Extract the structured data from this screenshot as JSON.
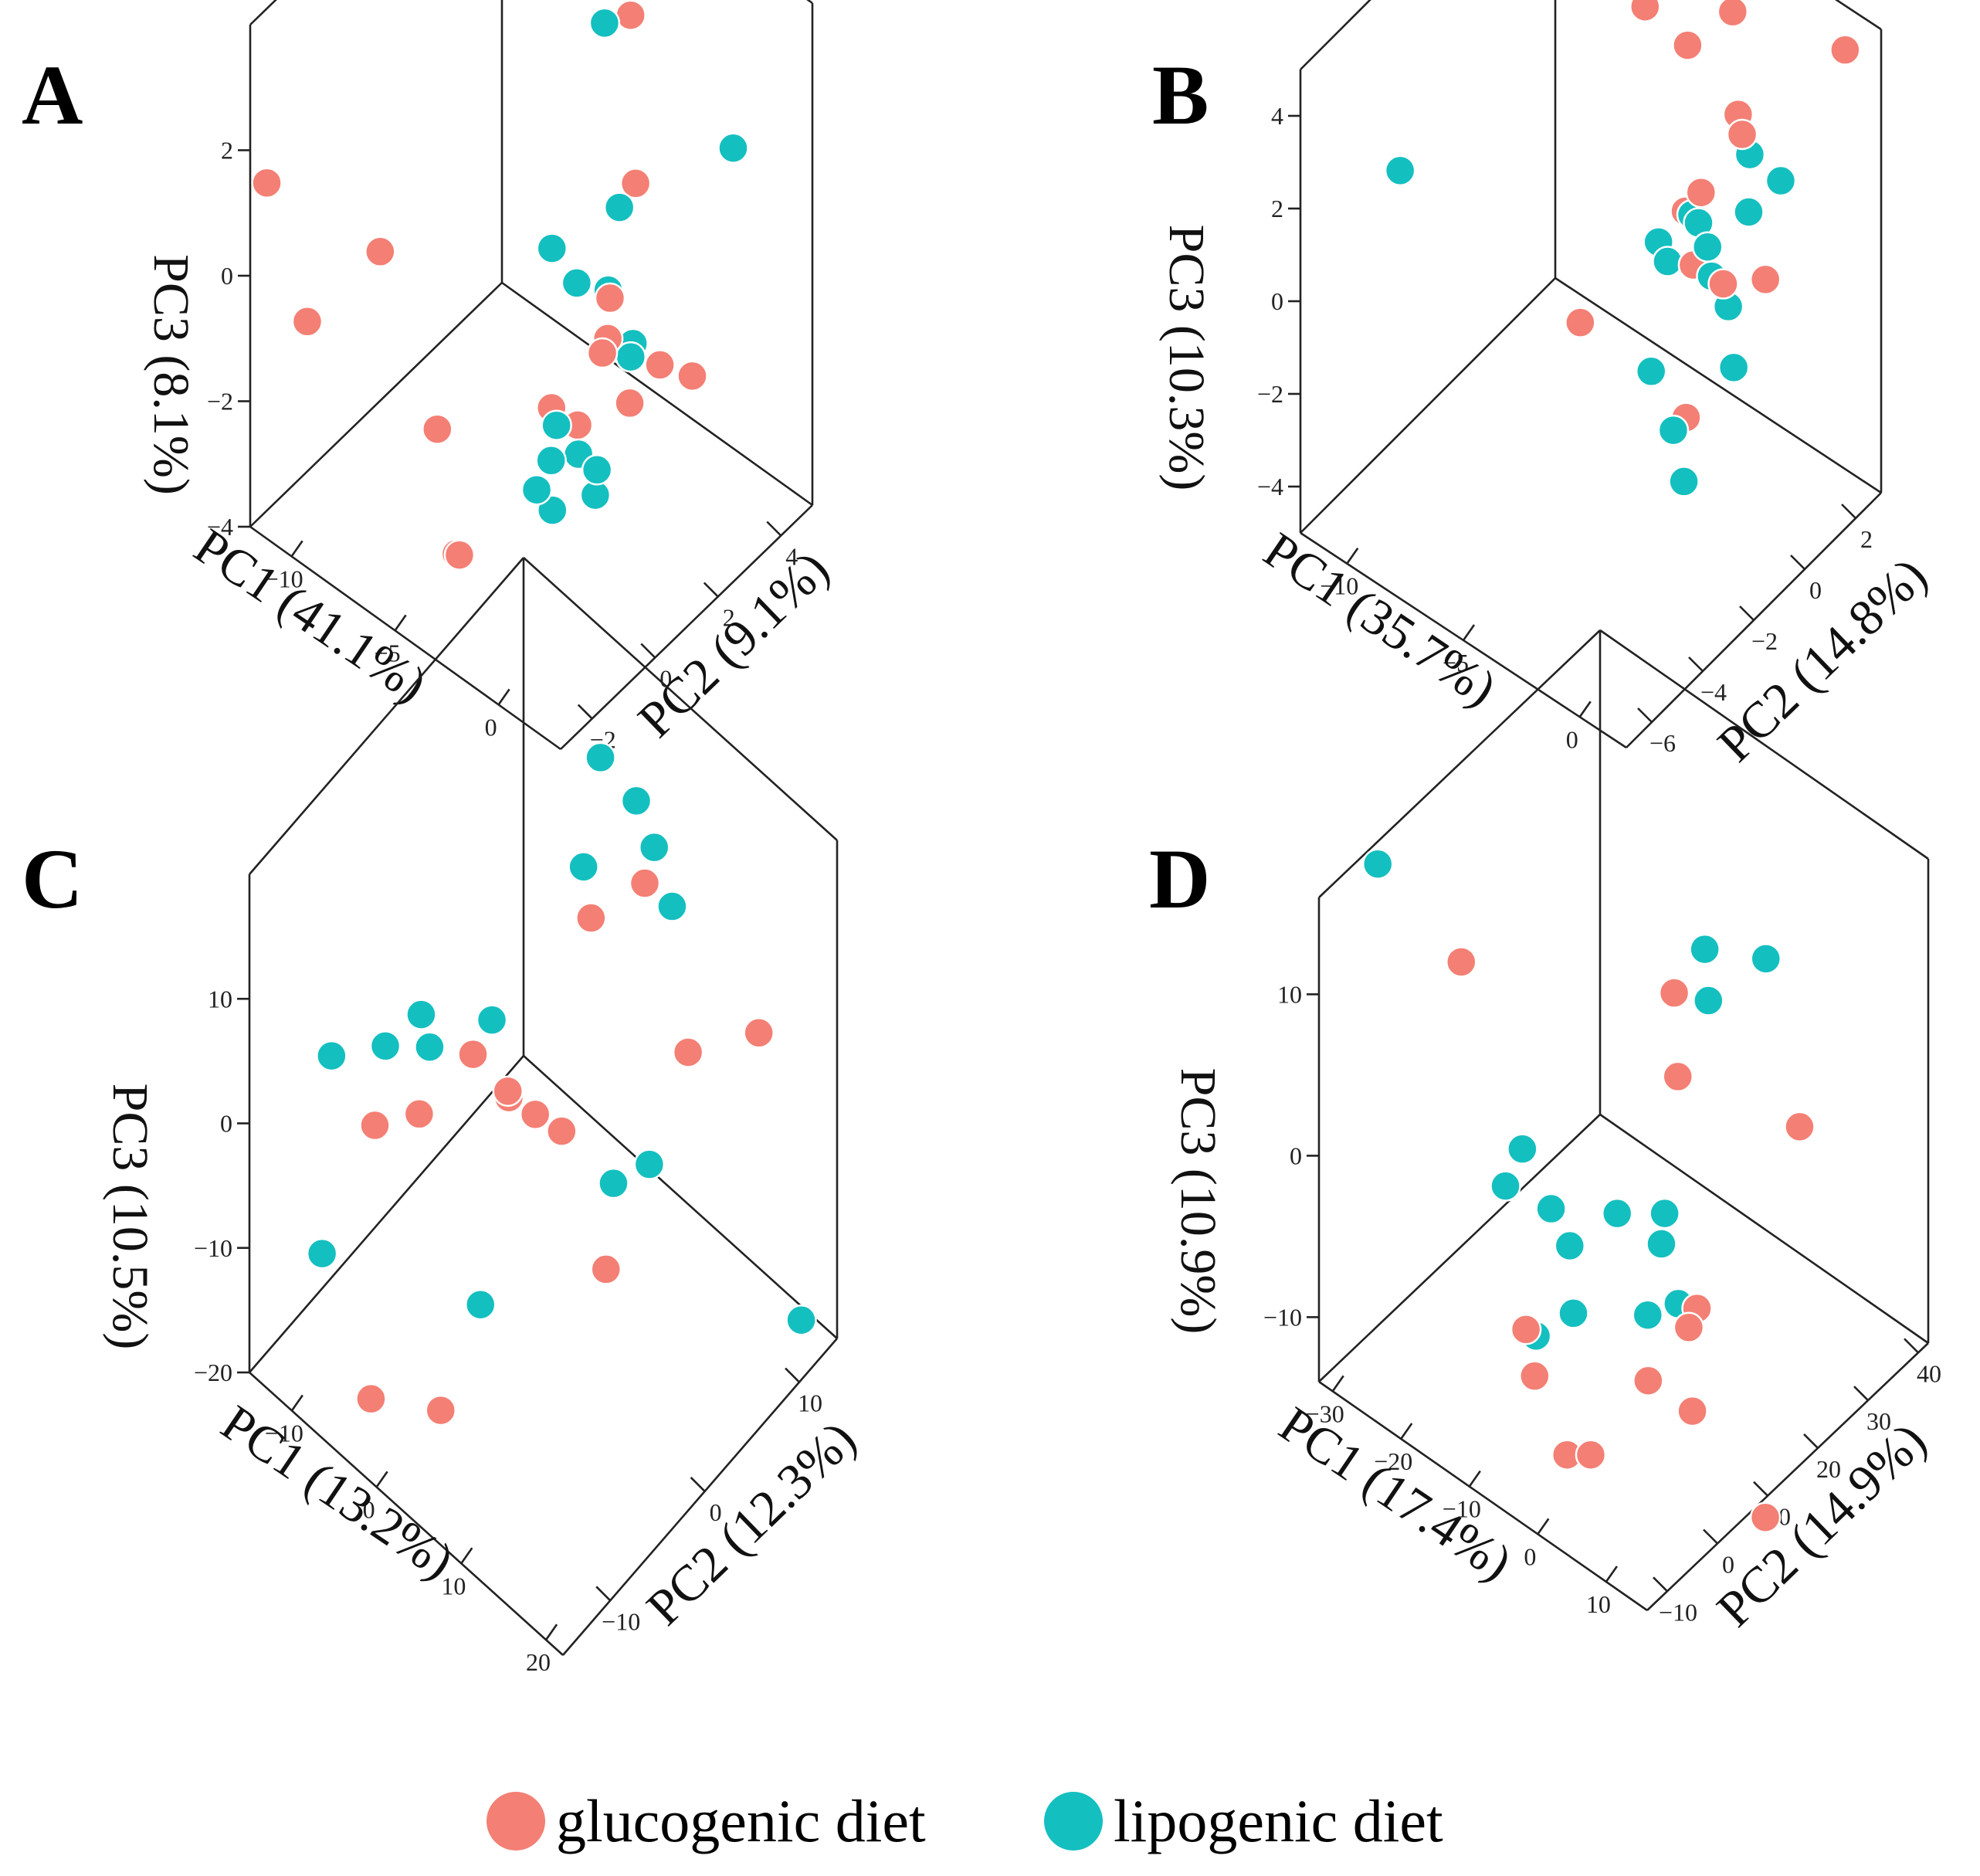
{
  "figure": {
    "panels_labels": [
      "A",
      "B",
      "C",
      "D"
    ],
    "colors": {
      "glucogenic": "#F47F74",
      "lipogenic": "#14BFC0"
    }
  },
  "legend": [
    {
      "label": "glucogenic diet",
      "color": "#F47F74"
    },
    {
      "label": "lipogenic diet",
      "color": "#14BFC0"
    }
  ],
  "chart_data": [
    {
      "type": "scatter",
      "panel": "A",
      "title": "",
      "xlabel": "PC1 (41.1%)",
      "ylabel": "PC2 (9.1%)",
      "zlabel": "PC3 (8.1%)",
      "xlim": [
        -12,
        3
      ],
      "ylim": [
        -3,
        5
      ],
      "zlim": [
        -4,
        4
      ],
      "xticks": [
        -10,
        -5,
        0
      ],
      "yticks": [
        -2,
        0,
        2,
        4
      ],
      "zticks": [
        -4,
        -2,
        0,
        2
      ],
      "legend_position": "bottom",
      "series": [
        {
          "name": "glucogenic diet",
          "x": [
            -11.5,
            -8,
            -10,
            -6,
            -3.5,
            -2.5,
            -2,
            -1.5,
            -2.8,
            -2.5,
            -1,
            -0.8,
            0,
            -0.5,
            0.5,
            1
          ],
          "y": [
            -2.8,
            -1.5,
            -2.5,
            -1,
            3.5,
            3.0,
            0,
            0.5,
            -2.5,
            -2.6,
            1.2,
            1.0,
            0.3,
            1.5,
            1.8,
            2.5
          ],
          "z": [
            1.5,
            0.6,
            -0.5,
            -2,
            3.0,
            0.8,
            -1.2,
            -1.6,
            -2.5,
            -2.4,
            0.2,
            -0.3,
            0,
            -1.5,
            -0.8,
            -1.2
          ]
        },
        {
          "name": "lipogenic diet",
          "x": [
            -5,
            -4,
            -1,
            1,
            -3.5,
            -2,
            -2,
            -1,
            -1.5,
            -0.5,
            0,
            -0.5,
            0.5,
            -1,
            -1.2,
            -0.8
          ],
          "y": [
            4.5,
            3.0,
            1.5,
            3.8,
            1.0,
            0.8,
            1.8,
            -0.5,
            -0.8,
            1.6,
            1.2,
            -1.0,
            -0.2,
            0.2,
            -0.5,
            0.6
          ],
          "z": [
            3.5,
            3.0,
            1.5,
            1.8,
            0.5,
            0.4,
            -0.2,
            -1.0,
            -2.0,
            -0.6,
            -0.5,
            -1.2,
            -1.5,
            -1.8,
            -2.4,
            -2.6
          ]
        }
      ]
    },
    {
      "type": "scatter",
      "panel": "B",
      "title": "",
      "xlabel": "PC1 (35.7%)",
      "ylabel": "PC2 (14.8%)",
      "zlabel": "PC3 (10.3%)",
      "xlim": [
        -12,
        2
      ],
      "ylim": [
        -7,
        3
      ],
      "zlim": [
        -5,
        5
      ],
      "xticks": [
        -10,
        -5,
        0
      ],
      "yticks": [
        -6,
        -4,
        -2,
        0,
        2
      ],
      "zticks": [
        -4,
        -2,
        0,
        2,
        4
      ],
      "legend_position": "bottom",
      "series": [
        {
          "name": "glucogenic diet",
          "x": [
            -6,
            -6.5,
            -5,
            -3.5,
            -2.5,
            -2,
            -3,
            -4,
            -3,
            -1,
            -1.5,
            -6,
            1,
            -2
          ],
          "y": [
            2,
            1.5,
            1.8,
            2.2,
            1.5,
            1.2,
            0.5,
            0.8,
            0.2,
            1.2,
            0,
            -1.5,
            2.5,
            -1.0
          ],
          "z": [
            4.5,
            3.5,
            3.0,
            4.0,
            2.5,
            2.4,
            1.2,
            0.3,
            -0.2,
            -0.4,
            0,
            -1.5,
            4.5,
            -2.5
          ]
        },
        {
          "name": "lipogenic diet",
          "x": [
            -11,
            -2,
            -1.5,
            -3.5,
            -3,
            -4.5,
            -4,
            -2.5,
            -2,
            -1.0,
            -1.5,
            -3.5,
            -2,
            -0.5,
            -1
          ],
          "y": [
            -4,
            1.5,
            1.0,
            0.6,
            0.4,
            0.2,
            0.1,
            0.3,
            0,
            1.8,
            0.2,
            -1.0,
            -1.5,
            -0.5,
            -2.0
          ],
          "z": [
            1.5,
            1.8,
            1.0,
            0.5,
            0.6,
            -0.2,
            -0.4,
            0.3,
            0,
            1.4,
            -0.6,
            -2.0,
            -2.5,
            -1.2,
            -3.0
          ]
        }
      ]
    },
    {
      "type": "scatter",
      "panel": "C",
      "title": "",
      "xlabel": "PC1 (13.2%)",
      "ylabel": "PC2 (12.3%)",
      "zlabel": "PC3 (10.5%)",
      "xlim": [
        -15,
        22
      ],
      "ylim": [
        -15,
        14
      ],
      "zlim": [
        -20,
        20
      ],
      "xticks": [
        -10,
        0,
        10,
        20
      ],
      "yticks": [
        -10,
        0,
        10
      ],
      "zticks": [
        -20,
        -10,
        0,
        10
      ],
      "legend_position": "bottom",
      "series": [
        {
          "name": "glucogenic diet",
          "x": [
            -8,
            -5,
            -2,
            1,
            0,
            2,
            4,
            1,
            3,
            6,
            10,
            15,
            -4,
            2,
            7
          ],
          "y": [
            -8,
            -6,
            -3,
            -2,
            -1,
            0,
            1,
            6,
            5,
            8,
            9,
            12,
            -12,
            -10,
            3
          ],
          "z": [
            -2,
            -1,
            3,
            1,
            -1,
            -2,
            -3,
            12,
            10,
            12,
            0,
            2,
            -18,
            -17,
            -14
          ]
        },
        {
          "name": "lipogenic diet",
          "x": [
            -12,
            -9,
            -7,
            -6,
            -2,
            3,
            5,
            6,
            7,
            1,
            9,
            11,
            -12,
            0,
            20
          ],
          "y": [
            -9,
            -6,
            -4,
            -4,
            -1,
            6,
            8,
            9,
            10,
            6,
            2,
            4,
            -10,
            -4,
            12
          ],
          "z": [
            2,
            2,
            4,
            2,
            4,
            22,
            18,
            14,
            9,
            12,
            -5,
            -4,
            -13,
            -15,
            -18
          ]
        }
      ]
    },
    {
      "type": "scatter",
      "panel": "D",
      "title": "",
      "xlabel": "PC1 (17.4%)",
      "ylabel": "PC2 (14.9%)",
      "zlabel": "PC3 (10.9%)",
      "xlim": [
        -32,
        16
      ],
      "ylim": [
        -14,
        42
      ],
      "zlim": [
        -14,
        16
      ],
      "xticks": [
        -30,
        -20,
        -10,
        0,
        10
      ],
      "yticks": [
        -10,
        0,
        10,
        20,
        30,
        40
      ],
      "zticks": [
        -10,
        0,
        10
      ],
      "legend_position": "bottom",
      "series": [
        {
          "name": "glucogenic diet",
          "x": [
            -20,
            -5,
            -3,
            -12,
            -10,
            2,
            3,
            0,
            -6,
            -4,
            5,
            6,
            12
          ],
          "y": [
            -2,
            20,
            18,
            0,
            -1,
            15,
            12,
            8,
            0,
            2,
            10,
            30,
            15
          ],
          "z": [
            12,
            8,
            4,
            -9,
            -11,
            -8,
            -8,
            -11,
            -15,
            -15,
            -12,
            0,
            -18
          ]
        },
        {
          "name": "lipogenic diet",
          "x": [
            -30,
            -2,
            0,
            4,
            -15,
            -14,
            -12,
            -10,
            -8,
            -6,
            -2,
            -1,
            0,
            -12,
            -3
          ],
          "y": [
            -5,
            22,
            20,
            26,
            0,
            2,
            5,
            6,
            4,
            10,
            14,
            12,
            14,
            2,
            12
          ],
          "z": [
            16,
            11,
            9,
            11,
            -1,
            1,
            -3,
            -5,
            -8,
            -3,
            -3,
            -4,
            -8,
            -10,
            -9
          ]
        }
      ]
    }
  ]
}
